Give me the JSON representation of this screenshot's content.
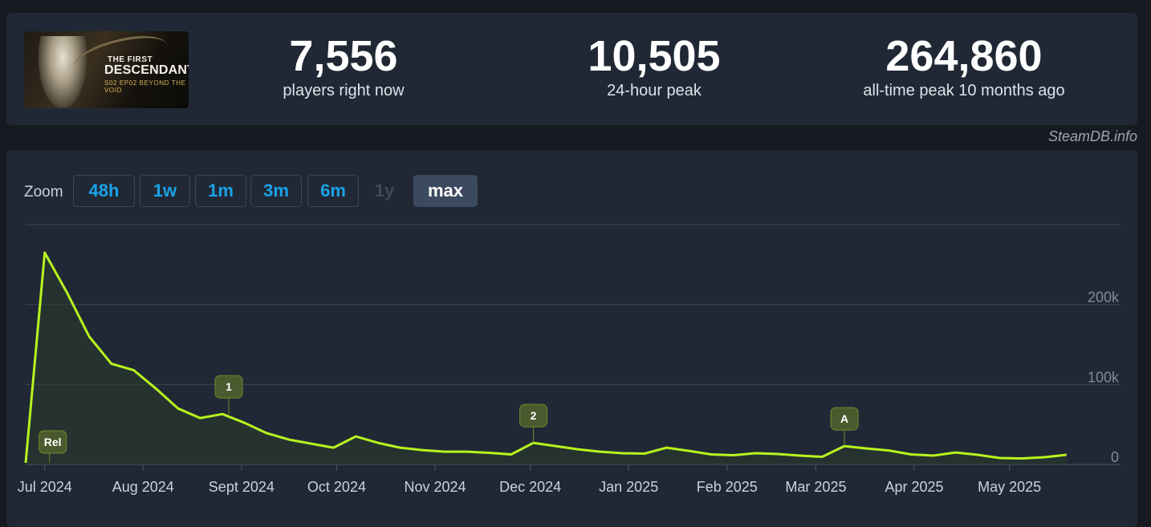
{
  "game": {
    "cover_icon": "game-cover-art",
    "cover_title_small": "THE FIRST",
    "cover_title_big": "DESCENDANT",
    "cover_subtitle": "S02 EP02 BEYOND THE VOID"
  },
  "stats": [
    {
      "value": "7,556",
      "label": "players right now"
    },
    {
      "value": "10,505",
      "label": "24-hour peak"
    },
    {
      "value": "264,860",
      "label": "all-time peak 10 months ago"
    }
  ],
  "credit": "SteamDB.info",
  "zoom": {
    "label": "Zoom",
    "buttons": [
      {
        "label": "48h",
        "state": "enabled"
      },
      {
        "label": "1w",
        "state": "enabled"
      },
      {
        "label": "1m",
        "state": "enabled"
      },
      {
        "label": "3m",
        "state": "enabled"
      },
      {
        "label": "6m",
        "state": "enabled"
      },
      {
        "label": "1y",
        "state": "disabled"
      },
      {
        "label": "max",
        "state": "active"
      }
    ]
  },
  "colors": {
    "line": "#b8f31f",
    "area": "#2a3a2a",
    "grid": "#3b4656",
    "flag": "#4a5a2e",
    "flag_border": "#6e8a2e",
    "accent": "#1aa3e8"
  },
  "chart_data": {
    "type": "line",
    "title": "",
    "xlabel": "",
    "ylabel": "",
    "ylim": [
      0,
      300000
    ],
    "y_ticks": [
      {
        "value": 0,
        "label": "0"
      },
      {
        "value": 100000,
        "label": "100k"
      },
      {
        "value": 200000,
        "label": "200k"
      }
    ],
    "x_ticks": [
      "Jul 2024",
      "Aug 2024",
      "Sept 2024",
      "Oct 2024",
      "Nov 2024",
      "Dec 2024",
      "Jan 2025",
      "Feb 2025",
      "Mar 2025",
      "Apr 2025",
      "May 2025"
    ],
    "x_tick_days": [
      6,
      37,
      68,
      98,
      129,
      159,
      190,
      221,
      249,
      280,
      310
    ],
    "x_range_days": [
      0,
      345
    ],
    "grid": true,
    "series": [
      {
        "values": [
          [
            0,
            2000
          ],
          [
            6,
            264860
          ],
          [
            13,
            215000
          ],
          [
            20,
            160000
          ],
          [
            27,
            126000
          ],
          [
            34,
            118000
          ],
          [
            41,
            95000
          ],
          [
            48,
            70000
          ],
          [
            55,
            58000
          ],
          [
            62,
            63000
          ],
          [
            69,
            52000
          ],
          [
            76,
            39000
          ],
          [
            83,
            31000
          ],
          [
            90,
            26000
          ],
          [
            97,
            21000
          ],
          [
            104,
            35000
          ],
          [
            111,
            27000
          ],
          [
            118,
            21000
          ],
          [
            125,
            18000
          ],
          [
            132,
            16000
          ],
          [
            139,
            16000
          ],
          [
            146,
            14500
          ],
          [
            153,
            12500
          ],
          [
            160,
            27000
          ],
          [
            167,
            23000
          ],
          [
            174,
            19000
          ],
          [
            181,
            16000
          ],
          [
            188,
            14000
          ],
          [
            195,
            13500
          ],
          [
            202,
            21000
          ],
          [
            209,
            17000
          ],
          [
            216,
            12500
          ],
          [
            223,
            11500
          ],
          [
            230,
            14000
          ],
          [
            237,
            13000
          ],
          [
            244,
            11000
          ],
          [
            251,
            9500
          ],
          [
            258,
            23000
          ],
          [
            265,
            20000
          ],
          [
            272,
            17500
          ],
          [
            279,
            12500
          ],
          [
            286,
            11000
          ],
          [
            293,
            15000
          ],
          [
            300,
            12000
          ],
          [
            307,
            8000
          ],
          [
            314,
            7500
          ],
          [
            321,
            9000
          ],
          [
            328,
            12000
          ]
        ]
      }
    ],
    "annotations": [
      {
        "label": "Rel",
        "day": 7.5,
        "value": 2000
      },
      {
        "label": "1",
        "day": 64,
        "value": 63000
      },
      {
        "label": "2",
        "day": 160,
        "value": 27000
      },
      {
        "label": "A",
        "day": 258,
        "value": 23000
      }
    ]
  }
}
